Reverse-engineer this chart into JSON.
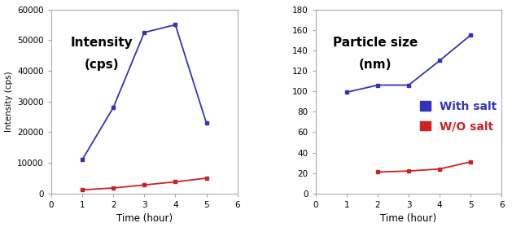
{
  "left": {
    "title_line1": "Intensity",
    "title_line2": "(cps)",
    "xlabel": "Time (hour)",
    "ylabel": "Intensity (cps)",
    "xlim": [
      0,
      6
    ],
    "ylim": [
      0,
      60000
    ],
    "yticks": [
      0,
      10000,
      20000,
      30000,
      40000,
      50000,
      60000
    ],
    "xticks": [
      0,
      1,
      2,
      3,
      4,
      5,
      6
    ],
    "blue_x": [
      1,
      2,
      3,
      4,
      5
    ],
    "blue_y": [
      11000,
      28000,
      52500,
      55000,
      23000
    ],
    "red_x": [
      1,
      2,
      3,
      4,
      5
    ],
    "red_y": [
      1200,
      1800,
      2800,
      3800,
      5000
    ],
    "blue_color": "#3333bb",
    "red_color": "#cc2222"
  },
  "right": {
    "title_line1": "Particle size",
    "title_line2": "(nm)",
    "xlabel": "Time (hour)",
    "xlim": [
      0,
      6
    ],
    "ylim": [
      0,
      180
    ],
    "yticks": [
      0,
      20,
      40,
      60,
      80,
      100,
      120,
      140,
      160,
      180
    ],
    "xticks": [
      0,
      1,
      2,
      3,
      4,
      5,
      6
    ],
    "blue_x": [
      1,
      2,
      3,
      4,
      5
    ],
    "blue_y": [
      99,
      106,
      106,
      130,
      155
    ],
    "red_x": [
      2,
      3,
      4,
      5
    ],
    "red_y": [
      21,
      22,
      24,
      31
    ],
    "blue_color": "#3333bb",
    "red_color": "#cc2222",
    "legend_labels": [
      "With salt",
      "W/O salt"
    ],
    "legend_colors": [
      "#3333bb",
      "#cc2222"
    ]
  }
}
